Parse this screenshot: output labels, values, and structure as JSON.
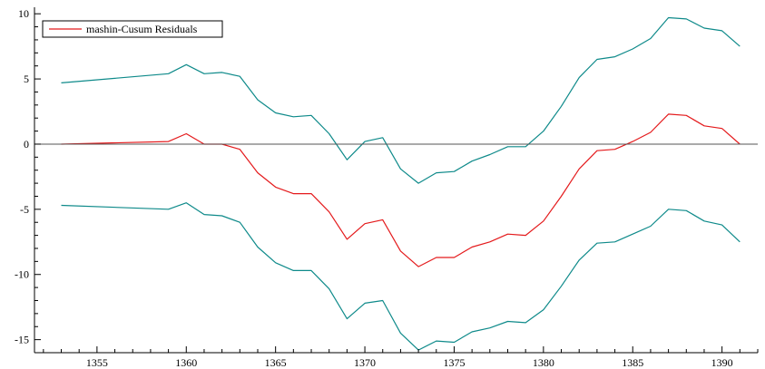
{
  "chart_data": {
    "type": "line",
    "title": "",
    "xlabel": "",
    "ylabel": "",
    "xlim": [
      1351.5,
      1392
    ],
    "ylim": [
      -16,
      10.5
    ],
    "x_ticks": [
      1355,
      1360,
      1365,
      1370,
      1375,
      1380,
      1385,
      1390
    ],
    "y_ticks": [
      -15,
      -10,
      -5,
      0,
      5,
      10
    ],
    "zero_line": true,
    "grid": false,
    "legend": {
      "position": "top-left",
      "entries": [
        "mashin-Cusum Residuals"
      ]
    },
    "x": [
      1353,
      1359,
      1360,
      1361,
      1362,
      1363,
      1364,
      1365,
      1366,
      1367,
      1368,
      1369,
      1370,
      1371,
      1372,
      1373,
      1374,
      1375,
      1376,
      1377,
      1378,
      1379,
      1380,
      1381,
      1382,
      1383,
      1384,
      1385,
      1386,
      1387,
      1388,
      1389,
      1390,
      1391
    ],
    "series": [
      {
        "name": "mashin-Cusum Residuals",
        "color": "#e41a1c",
        "values": [
          0.0,
          0.2,
          0.8,
          0.0,
          0.0,
          -0.4,
          -2.2,
          -3.3,
          -3.8,
          -3.8,
          -5.2,
          -7.3,
          -6.1,
          -5.8,
          -8.2,
          -9.4,
          -8.7,
          -8.7,
          -7.9,
          -7.5,
          -6.9,
          -7.0,
          -5.9,
          -4.0,
          -1.9,
          -0.5,
          -0.4,
          0.2,
          0.9,
          2.3,
          2.2,
          1.4,
          1.2,
          0.0
        ]
      },
      {
        "color": "#0e8a8a",
        "values": [
          4.7,
          5.4,
          6.1,
          5.4,
          5.5,
          5.2,
          3.4,
          2.4,
          2.1,
          2.2,
          0.8,
          -1.2,
          0.2,
          0.5,
          -1.9,
          -3.0,
          -2.2,
          -2.1,
          -1.3,
          -0.8,
          -0.2,
          -0.2,
          1.0,
          2.9,
          5.1,
          6.5,
          6.7,
          7.3,
          8.1,
          9.7,
          9.6,
          8.9,
          8.7,
          7.5
        ]
      },
      {
        "color": "#0e8a8a",
        "values": [
          -4.7,
          -5.0,
          -4.5,
          -5.4,
          -5.5,
          -6.0,
          -7.9,
          -9.1,
          -9.7,
          -9.7,
          -11.1,
          -13.4,
          -12.2,
          -12.0,
          -14.5,
          -15.8,
          -15.1,
          -15.2,
          -14.4,
          -14.1,
          -13.6,
          -13.7,
          -12.7,
          -10.9,
          -8.9,
          -7.6,
          -7.5,
          -6.9,
          -6.3,
          -5.0,
          -5.1,
          -5.9,
          -6.2,
          -7.5
        ]
      }
    ],
    "axis_color": "#000000",
    "zero_line_color": "#555555"
  }
}
